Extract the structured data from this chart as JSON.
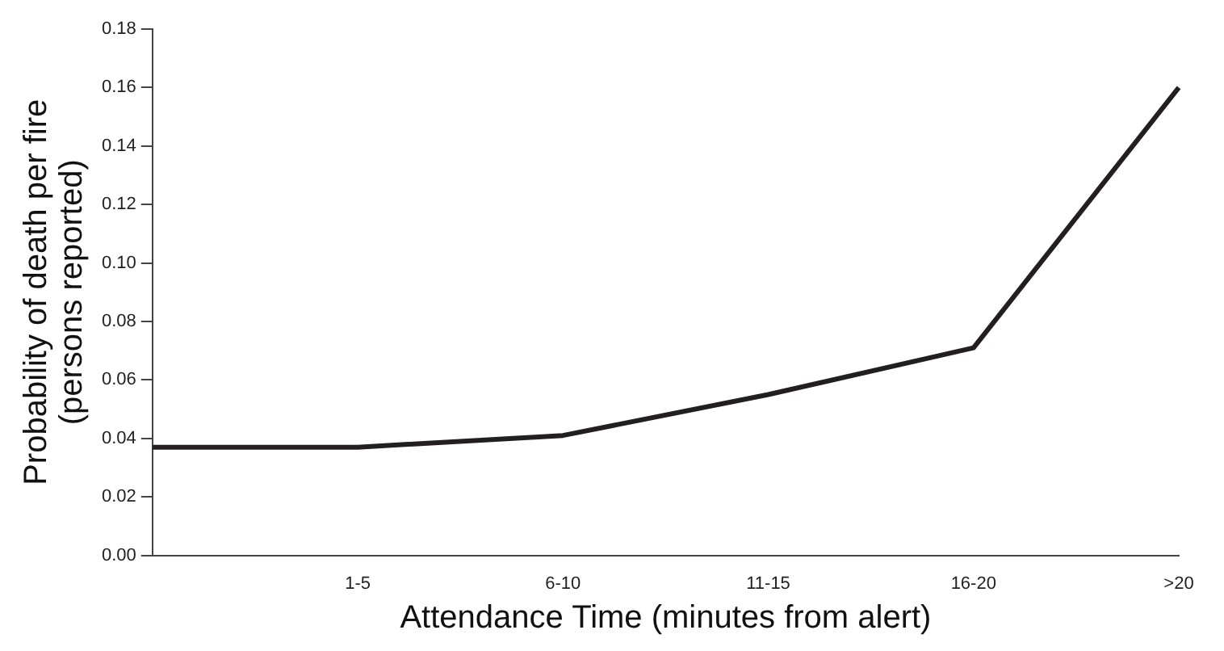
{
  "chart_data": {
    "type": "line",
    "xlabel": "Attendance Time (minutes from alert)",
    "ylabel": "Probability of death per fire\n(persons reported)",
    "categories": [
      null,
      "1-5",
      "6-10",
      "11-15",
      "16-20",
      ">20"
    ],
    "series": [
      {
        "color": "#231f20",
        "values": [
          0.037,
          0.037,
          0.041,
          0.055,
          0.071,
          0.16
        ]
      }
    ],
    "ylim": [
      0,
      0.18
    ],
    "yticks": [
      {
        "value": 0,
        "label": "0.00"
      },
      {
        "value": 0.02,
        "label": "0.02"
      },
      {
        "value": 0.04,
        "label": "0.04"
      },
      {
        "value": 0.06,
        "label": "0.06"
      },
      {
        "value": 0.08,
        "label": "0.08"
      },
      {
        "value": 0.1,
        "label": "0.10"
      },
      {
        "value": 0.12,
        "label": "0.12"
      },
      {
        "value": 0.14,
        "label": "0.14"
      },
      {
        "value": 0.16,
        "label": "0.16"
      },
      {
        "value": 0.18,
        "label": "0.18"
      }
    ],
    "grid": false,
    "legend": false,
    "marker": "none",
    "line_style": "solid"
  }
}
